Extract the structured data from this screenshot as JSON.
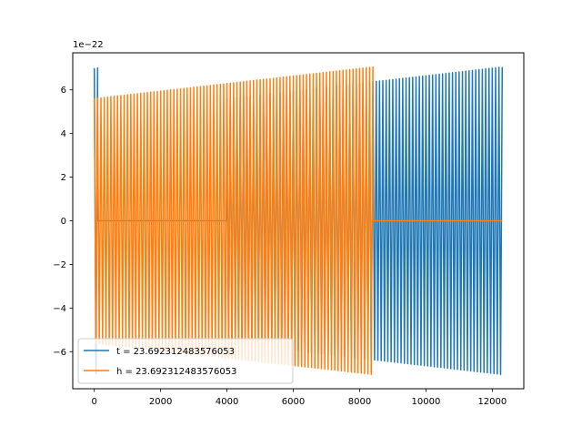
{
  "chart_data": {
    "type": "line",
    "title": "",
    "xlabel": "",
    "ylabel": "",
    "offset_text": "1e−22",
    "xlim": [
      -650,
      12950
    ],
    "ylim": [
      -7.7,
      7.7
    ],
    "xticks": [
      0,
      2000,
      4000,
      6000,
      8000,
      10000,
      12000
    ],
    "yticks": [
      -6,
      -4,
      -2,
      0,
      2,
      4,
      6
    ],
    "xtick_labels": [
      "0",
      "2000",
      "4000",
      "6000",
      "8000",
      "10000",
      "12000"
    ],
    "ytick_labels": [
      "−6",
      "−4",
      "−2",
      "0",
      "2",
      "4",
      "6"
    ],
    "grid": false,
    "legend_position": "lower-left",
    "series": [
      {
        "name": "t = 23.692312483576053",
        "color": "#1f77b4",
        "x_range": [
          0,
          12300
        ],
        "oscillation_spacing": 100,
        "segments": [
          {
            "x": [
              0,
              100
            ],
            "amplitude": 7.0,
            "center": 0,
            "baseline": 0
          },
          {
            "x": [
              100,
              4000
            ],
            "amplitude": 0,
            "center": 0,
            "baseline": 0
          },
          {
            "x": [
              4000,
              12300
            ],
            "amplitude_start": 5.6,
            "amplitude_end": 7.05,
            "center": 0,
            "baseline": 0
          }
        ]
      },
      {
        "name": "h = 23.692312483576053",
        "color": "#ff7f0e",
        "x_range": [
          0,
          12300
        ],
        "oscillation_spacing": 100,
        "segments": [
          {
            "x": [
              0,
              8400
            ],
            "amplitude_start": 5.6,
            "amplitude_end": 7.05,
            "center": 0,
            "baseline": 0
          },
          {
            "x": [
              8400,
              12300
            ],
            "amplitude": 0,
            "center": 0,
            "baseline": 0
          }
        ]
      }
    ]
  }
}
